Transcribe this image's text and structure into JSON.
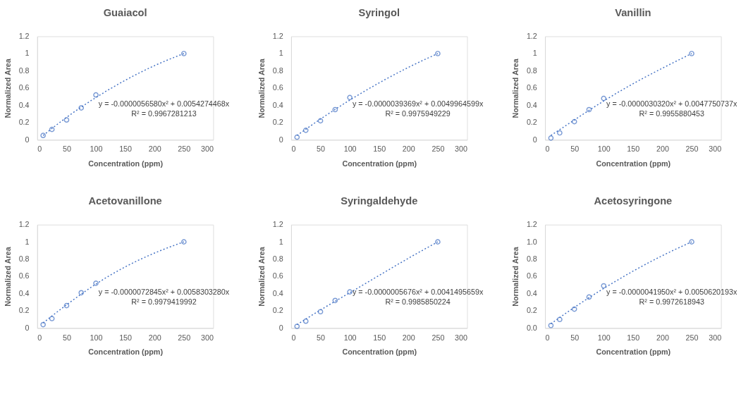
{
  "chart_data": [
    {
      "type": "scatter",
      "title": "Guaiacol",
      "xlabel": "Concentration (ppm)",
      "ylabel": "Normalized Area",
      "xlim": [
        0,
        300
      ],
      "xticks": [
        0,
        50,
        100,
        150,
        200,
        250,
        300
      ],
      "ylim": [
        0,
        1.2
      ],
      "yticks": [
        0,
        0.2,
        0.4,
        0.6,
        0.8,
        1,
        1.2
      ],
      "grid": false,
      "annotations": [
        "y = -0.0000056580x² + 0.0054274468x",
        "R² = 0.9967281213"
      ],
      "series": [
        {
          "type": "scatter",
          "color": "#4472c4",
          "marker": "circle",
          "x": [
            10,
            25,
            50,
            75,
            100,
            250
          ],
          "values": [
            0.05,
            0.12,
            0.23,
            0.37,
            0.52,
            1.0
          ]
        },
        {
          "type": "line",
          "color": "#4472c4",
          "line_style": "dotted",
          "x": [
            10,
            50,
            100,
            150,
            200,
            250
          ],
          "values": [
            0.05,
            0.26,
            0.49,
            0.69,
            0.86,
            1.0
          ]
        }
      ]
    },
    {
      "type": "scatter",
      "title": "Syringol",
      "xlabel": "Concentration (ppm)",
      "ylabel": "Normalized Area",
      "xlim": [
        0,
        300
      ],
      "xticks": [
        0,
        50,
        100,
        150,
        200,
        250,
        300
      ],
      "ylim": [
        0,
        1.2
      ],
      "yticks": [
        0,
        0.2,
        0.4,
        0.6,
        0.8,
        1,
        1.2
      ],
      "grid": false,
      "annotations": [
        "y = -0.0000039369x² + 0.0049964599x",
        "R² = 0.9975949229"
      ],
      "series": [
        {
          "type": "scatter",
          "color": "#4472c4",
          "marker": "circle",
          "x": [
            10,
            25,
            50,
            75,
            100,
            250
          ],
          "values": [
            0.03,
            0.11,
            0.22,
            0.35,
            0.49,
            1.0
          ]
        },
        {
          "type": "line",
          "color": "#4472c4",
          "line_style": "dotted",
          "x": [
            10,
            50,
            100,
            150,
            200,
            250
          ],
          "values": [
            0.05,
            0.24,
            0.46,
            0.66,
            0.84,
            1.0
          ]
        }
      ]
    },
    {
      "type": "scatter",
      "title": "Vanillin",
      "xlabel": "Concentration (ppm)",
      "ylabel": "Normalized Area",
      "xlim": [
        0,
        300
      ],
      "xticks": [
        0,
        50,
        100,
        150,
        200,
        250,
        300
      ],
      "ylim": [
        0,
        1.2
      ],
      "yticks": [
        0,
        0.2,
        0.4,
        0.6,
        0.8,
        1,
        1.2
      ],
      "grid": false,
      "annotations": [
        "y = -0.0000030320x² + 0.0047750737x",
        "R² = 0.9955880453"
      ],
      "series": [
        {
          "type": "scatter",
          "color": "#4472c4",
          "marker": "circle",
          "x": [
            10,
            25,
            50,
            75,
            100,
            250
          ],
          "values": [
            0.02,
            0.08,
            0.21,
            0.35,
            0.48,
            1.0
          ]
        },
        {
          "type": "line",
          "color": "#4472c4",
          "line_style": "dotted",
          "x": [
            10,
            50,
            100,
            150,
            200,
            250
          ],
          "values": [
            0.05,
            0.23,
            0.45,
            0.65,
            0.83,
            1.0
          ]
        }
      ]
    },
    {
      "type": "scatter",
      "title": "Acetovanillone",
      "xlabel": "Concentration (ppm)",
      "ylabel": "Normalized Area",
      "xlim": [
        0,
        300
      ],
      "xticks": [
        0,
        50,
        100,
        150,
        200,
        250,
        300
      ],
      "ylim": [
        0,
        1.2
      ],
      "yticks": [
        0,
        0.2,
        0.4,
        0.6,
        0.8,
        1,
        1.2
      ],
      "grid": false,
      "annotations": [
        "y = -0.0000072845x² + 0.0058303280x",
        "R² = 0.9979419992"
      ],
      "series": [
        {
          "type": "scatter",
          "color": "#4472c4",
          "marker": "circle",
          "x": [
            10,
            25,
            50,
            75,
            100,
            250
          ],
          "values": [
            0.04,
            0.11,
            0.26,
            0.41,
            0.52,
            1.0
          ]
        },
        {
          "type": "line",
          "color": "#4472c4",
          "line_style": "dotted",
          "x": [
            10,
            50,
            100,
            150,
            200,
            250
          ],
          "values": [
            0.06,
            0.27,
            0.51,
            0.71,
            0.87,
            1.0
          ]
        }
      ]
    },
    {
      "type": "scatter",
      "title": "Syringaldehyde",
      "xlabel": "Concentration (ppm)",
      "ylabel": "Normalized Area",
      "xlim": [
        0,
        300
      ],
      "xticks": [
        0,
        50,
        100,
        150,
        200,
        250,
        300
      ],
      "ylim": [
        0,
        1.2
      ],
      "yticks": [
        0,
        0.2,
        0.4,
        0.6,
        0.8,
        1,
        1.2
      ],
      "grid": false,
      "annotations": [
        "y = -0.0000005676x² + 0.0041495659x",
        "R² = 0.9985850224"
      ],
      "series": [
        {
          "type": "scatter",
          "color": "#4472c4",
          "marker": "circle",
          "x": [
            10,
            25,
            50,
            75,
            100,
            250
          ],
          "values": [
            0.02,
            0.08,
            0.19,
            0.32,
            0.42,
            1.0
          ]
        },
        {
          "type": "line",
          "color": "#4472c4",
          "line_style": "dotted",
          "x": [
            10,
            50,
            100,
            150,
            200,
            250
          ],
          "values": [
            0.04,
            0.21,
            0.41,
            0.61,
            0.81,
            1.0
          ]
        }
      ]
    },
    {
      "type": "scatter",
      "title": "Acetosyringone",
      "xlabel": "Concentration (ppm)",
      "ylabel": "Normalized Area",
      "xlim": [
        0,
        300
      ],
      "xticks": [
        0,
        50,
        100,
        150,
        200,
        250,
        300
      ],
      "ylim": [
        0,
        1.2
      ],
      "yticks": [
        {
          "value": 0,
          "label": "0.0"
        },
        0.2,
        0.4,
        0.6,
        0.8,
        {
          "value": 1,
          "label": "1.0"
        },
        1.2
      ],
      "grid": false,
      "annotations": [
        "y = -0.0000041950x² + 0.0050620193x",
        "R² = 0.9972618943"
      ],
      "series": [
        {
          "type": "scatter",
          "color": "#4472c4",
          "marker": "circle",
          "x": [
            10,
            25,
            50,
            75,
            100,
            250
          ],
          "values": [
            0.03,
            0.1,
            0.22,
            0.36,
            0.49,
            1.0
          ]
        },
        {
          "type": "line",
          "color": "#4472c4",
          "line_style": "dotted",
          "x": [
            10,
            50,
            100,
            150,
            200,
            250
          ],
          "values": [
            0.05,
            0.24,
            0.46,
            0.66,
            0.84,
            1.0
          ]
        }
      ]
    }
  ]
}
